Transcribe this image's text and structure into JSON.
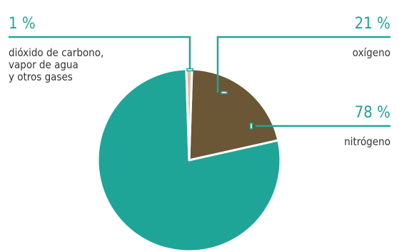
{
  "chart_data": {
    "type": "pie",
    "slices": [
      {
        "label": "oxígeno",
        "value": 21,
        "pct_text": "21 %",
        "color": "#6b5636"
      },
      {
        "label": "nitrógeno",
        "value": 78,
        "pct_text": "78 %",
        "color": "#1fa597"
      },
      {
        "label": "dióxido de carbono, vapor de agua y otros gases",
        "value": 1,
        "pct_text": "1 %",
        "color": "#d6c2a0"
      }
    ],
    "label_lines": {
      "co2": [
        "dióxido de carbono,",
        "vapor de agua",
        "y otros gases"
      ]
    },
    "leader_color": "#1fa597",
    "text_color": "#333333"
  }
}
